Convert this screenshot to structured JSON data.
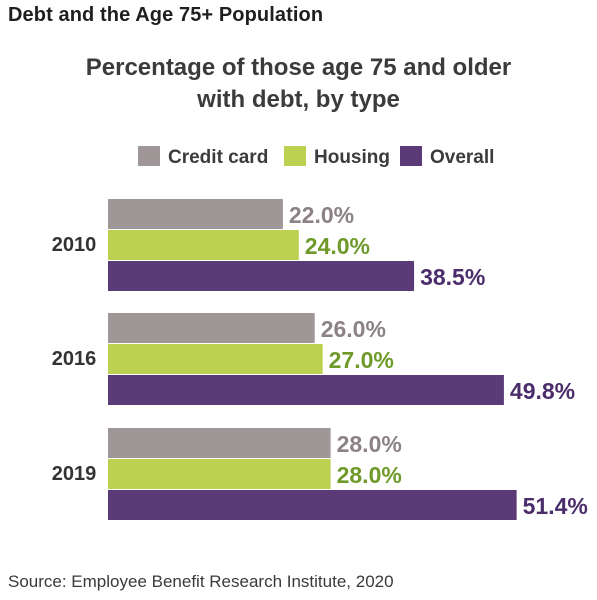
{
  "header": {
    "title": "Debt and the Age 75+ Population"
  },
  "chart_data": {
    "type": "bar",
    "orientation": "horizontal",
    "title_lines": [
      "Percentage of those age 75 and older",
      "with debt, by type"
    ],
    "categories": [
      "2010",
      "2016",
      "2019"
    ],
    "series": [
      {
        "name": "Credit card",
        "color": "#9e9697",
        "label_color": "#8c8283",
        "values": [
          22.0,
          26.0,
          28.0
        ]
      },
      {
        "name": "Housing",
        "color": "#bcd14f",
        "label_color": "#6f9a2a",
        "values": [
          24.0,
          27.0,
          28.0
        ]
      },
      {
        "name": "Overall",
        "color": "#5b3a78",
        "label_color": "#4a2d6a",
        "values": [
          38.5,
          49.8,
          51.4
        ]
      }
    ],
    "value_suffix": "%",
    "legend_position": "top",
    "grid": false
  },
  "source": {
    "text": "Source: Employee Benefit Research Institute, 2020"
  }
}
